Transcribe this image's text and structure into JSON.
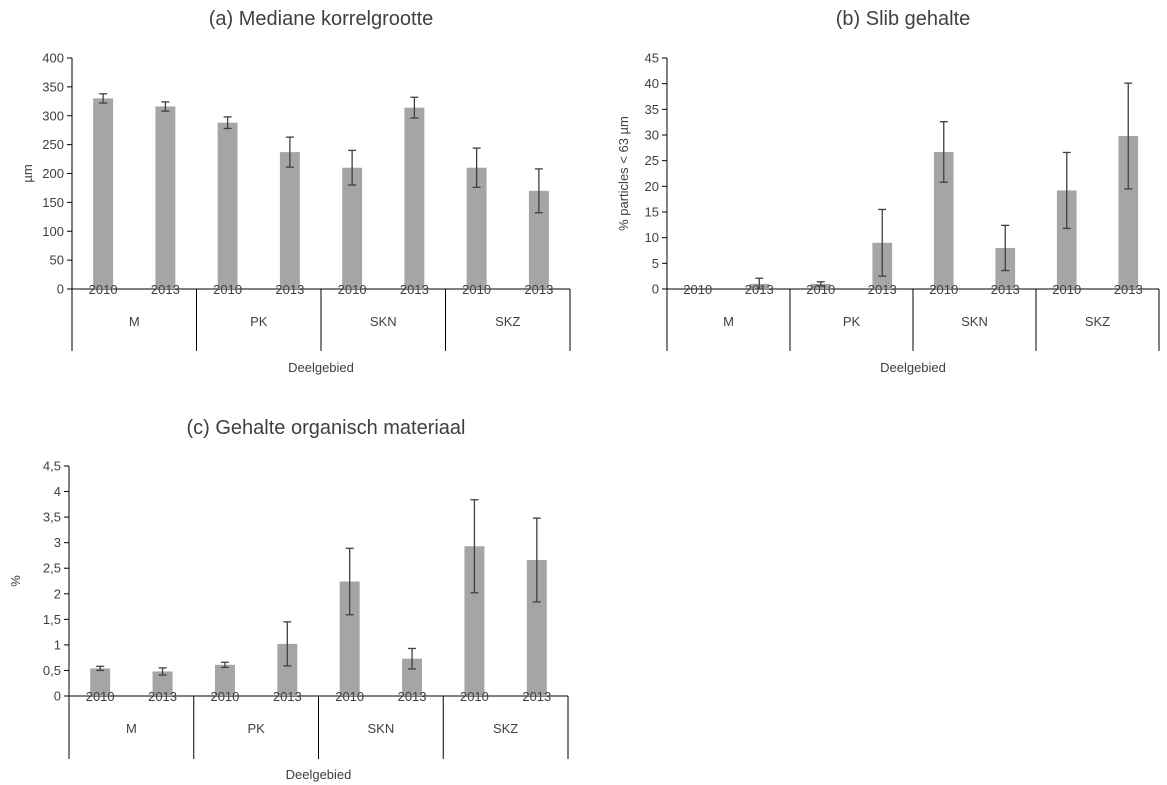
{
  "chart_data": [
    {
      "type": "bar",
      "title": "(a) Mediane korrelgrootte",
      "xlabel": "Deelgebied",
      "ylabel": "µm",
      "ylim": [
        0,
        400
      ],
      "yticks": [
        "0",
        "50",
        "100",
        "150",
        "200",
        "250",
        "300",
        "350",
        "400"
      ],
      "groups": [
        "M",
        "PK",
        "SKN",
        "SKZ"
      ],
      "categories": [
        "2010",
        "2013",
        "2010",
        "2013",
        "2010",
        "2013",
        "2010",
        "2013"
      ],
      "values": [
        330,
        316,
        288,
        237,
        210,
        314,
        210,
        170
      ],
      "error": [
        8,
        8,
        10,
        26,
        30,
        18,
        34,
        38
      ],
      "grid": false,
      "legend": "none"
    },
    {
      "type": "bar",
      "title": "(b) Slib gehalte",
      "xlabel": "Deelgebied",
      "ylabel": "% particles < 63 µm",
      "ylim": [
        0,
        45
      ],
      "yticks": [
        "0",
        "5",
        "10",
        "15",
        "20",
        "25",
        "30",
        "35",
        "40",
        "45"
      ],
      "groups": [
        "M",
        "PK",
        "SKN",
        "SKZ"
      ],
      "categories": [
        "2010",
        "2013",
        "2010",
        "2013",
        "2010",
        "2013",
        "2010",
        "2013"
      ],
      "values": [
        0,
        1,
        1,
        9,
        26.7,
        8,
        19.2,
        29.8
      ],
      "error": [
        0,
        1.1,
        0.4,
        6.5,
        5.9,
        4.4,
        7.4,
        10.3
      ],
      "grid": false,
      "legend": "none"
    },
    {
      "type": "bar",
      "title": "(c) Gehalte organisch materiaal",
      "xlabel": "Deelgebied",
      "ylabel": "%",
      "ylim": [
        0,
        4.5
      ],
      "yticks": [
        "0",
        "0,5",
        "1",
        "1,5",
        "2",
        "2,5",
        "3",
        "3,5",
        "4",
        "4,5"
      ],
      "groups": [
        "M",
        "PK",
        "SKN",
        "SKZ"
      ],
      "categories": [
        "2010",
        "2013",
        "2010",
        "2013",
        "2010",
        "2013",
        "2010",
        "2013"
      ],
      "values": [
        0.54,
        0.48,
        0.61,
        1.02,
        2.24,
        0.73,
        2.93,
        2.66
      ],
      "error": [
        0.04,
        0.07,
        0.05,
        0.43,
        0.65,
        0.2,
        0.91,
        0.82
      ],
      "grid": false,
      "legend": "none"
    }
  ]
}
